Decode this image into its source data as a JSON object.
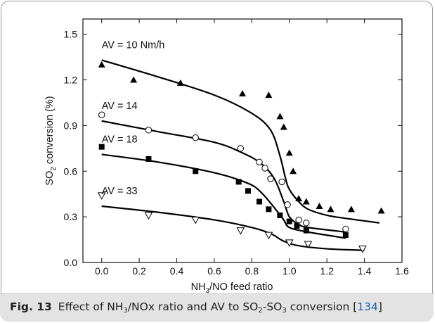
{
  "chart_data": {
    "type": "scatter",
    "xlabel": {
      "base": "NH",
      "sub": "3",
      "rest": "/NO feed ratio"
    },
    "ylabel": {
      "base": "SO",
      "sub": "2",
      "rest": " conversion (%)"
    },
    "xlim": [
      -0.1,
      1.6
    ],
    "ylim": [
      0.0,
      1.6
    ],
    "xticks": [
      "0.0",
      "0.2",
      "0.4",
      "0.6",
      "0.8",
      "1.0",
      "1.2",
      "1.4",
      "1.6"
    ],
    "yticks": [
      "0.0",
      "0.3",
      "0.6",
      "0.9",
      "1.2",
      "1.5"
    ],
    "series": [
      {
        "name": "AV = 10 Nm/h",
        "marker": "triangle-filled",
        "points": [
          [
            0.0,
            1.3
          ],
          [
            0.17,
            1.2
          ],
          [
            0.42,
            1.18
          ],
          [
            0.75,
            1.11
          ],
          [
            0.89,
            1.1
          ],
          [
            0.95,
            0.96
          ],
          [
            0.97,
            0.89
          ],
          [
            1.0,
            0.72
          ],
          [
            1.02,
            0.6
          ],
          [
            1.05,
            0.42
          ],
          [
            1.09,
            0.4
          ],
          [
            1.16,
            0.37
          ],
          [
            1.22,
            0.35
          ],
          [
            1.33,
            0.35
          ],
          [
            1.49,
            0.34
          ]
        ],
        "curve": [
          [
            0.0,
            1.33
          ],
          [
            0.3,
            1.22
          ],
          [
            0.6,
            1.1
          ],
          [
            0.8,
            0.98
          ],
          [
            0.9,
            0.87
          ],
          [
            0.95,
            0.7
          ],
          [
            0.98,
            0.55
          ],
          [
            1.0,
            0.48
          ],
          [
            1.05,
            0.4
          ],
          [
            1.1,
            0.35
          ],
          [
            1.2,
            0.31
          ],
          [
            1.3,
            0.29
          ],
          [
            1.48,
            0.26
          ]
        ]
      },
      {
        "name": "AV = 14",
        "marker": "circle-open",
        "points": [
          [
            0.0,
            0.97
          ],
          [
            0.25,
            0.87
          ],
          [
            0.5,
            0.82
          ],
          [
            0.74,
            0.75
          ],
          [
            0.84,
            0.66
          ],
          [
            0.87,
            0.62
          ],
          [
            0.9,
            0.55
          ],
          [
            0.96,
            0.53
          ],
          [
            0.99,
            0.38
          ],
          [
            1.05,
            0.28
          ],
          [
            1.09,
            0.26
          ],
          [
            1.3,
            0.22
          ]
        ],
        "curve": [
          [
            0.0,
            0.93
          ],
          [
            0.3,
            0.86
          ],
          [
            0.6,
            0.79
          ],
          [
            0.75,
            0.72
          ],
          [
            0.85,
            0.65
          ],
          [
            0.92,
            0.55
          ],
          [
            0.97,
            0.4
          ],
          [
            1.0,
            0.3
          ],
          [
            1.05,
            0.25
          ],
          [
            1.1,
            0.23
          ],
          [
            1.3,
            0.2
          ]
        ]
      },
      {
        "name": "AV = 18",
        "marker": "square-filled",
        "points": [
          [
            0.0,
            0.76
          ],
          [
            0.25,
            0.68
          ],
          [
            0.5,
            0.6
          ],
          [
            0.73,
            0.53
          ],
          [
            0.78,
            0.47
          ],
          [
            0.84,
            0.4
          ],
          [
            0.89,
            0.35
          ],
          [
            0.95,
            0.31
          ],
          [
            1.0,
            0.27
          ],
          [
            1.04,
            0.24
          ],
          [
            1.09,
            0.21
          ],
          [
            1.3,
            0.18
          ]
        ],
        "curve": [
          [
            0.0,
            0.71
          ],
          [
            0.3,
            0.66
          ],
          [
            0.6,
            0.59
          ],
          [
            0.78,
            0.52
          ],
          [
            0.85,
            0.46
          ],
          [
            0.92,
            0.36
          ],
          [
            0.97,
            0.28
          ],
          [
            1.0,
            0.23
          ],
          [
            1.1,
            0.2
          ],
          [
            1.3,
            0.16
          ]
        ]
      },
      {
        "name": "AV = 33",
        "marker": "triangle-down-open",
        "points": [
          [
            0.0,
            0.44
          ],
          [
            0.25,
            0.31
          ],
          [
            0.5,
            0.28
          ],
          [
            0.74,
            0.21
          ],
          [
            0.89,
            0.18
          ],
          [
            1.0,
            0.13
          ],
          [
            1.1,
            0.12
          ],
          [
            1.39,
            0.09
          ]
        ],
        "curve": [
          [
            0.0,
            0.37
          ],
          [
            0.3,
            0.33
          ],
          [
            0.6,
            0.28
          ],
          [
            0.8,
            0.23
          ],
          [
            0.9,
            0.19
          ],
          [
            0.97,
            0.14
          ],
          [
            1.05,
            0.11
          ],
          [
            1.2,
            0.09
          ],
          [
            1.4,
            0.08
          ]
        ]
      }
    ]
  },
  "caption": {
    "fig": "Fig. 13",
    "text_parts": [
      "Effect of NH",
      "3",
      "/NOx ratio and AV to SO",
      "2",
      "-SO",
      "3",
      " conversion ["
    ],
    "ref": "134",
    "close": "]"
  }
}
